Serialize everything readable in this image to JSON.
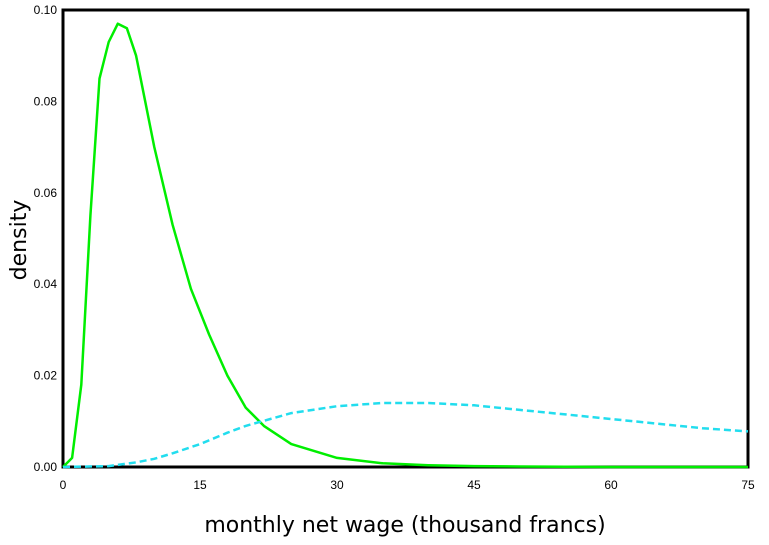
{
  "chart_data": {
    "type": "line",
    "xlabel": "monthly net wage (thousand francs)",
    "ylabel": "density",
    "xlim": [
      0,
      75
    ],
    "ylim": [
      0,
      0.1
    ],
    "xticks": [
      "0",
      "15",
      "30",
      "45",
      "60",
      "75"
    ],
    "yticks": [
      "0.00",
      "0.02",
      "0.04",
      "0.06",
      "0.08",
      "0.10"
    ],
    "grid": false,
    "series": [
      {
        "color": "#00ee00",
        "style": "solid",
        "x": [
          0,
          1,
          2,
          3,
          4,
          5,
          6,
          7,
          8,
          9,
          10,
          12,
          14,
          16,
          18,
          20,
          22,
          25,
          30,
          35,
          40,
          45,
          50,
          60,
          75
        ],
        "y": [
          0,
          0.002,
          0.018,
          0.055,
          0.085,
          0.093,
          0.097,
          0.096,
          0.09,
          0.08,
          0.07,
          0.053,
          0.039,
          0.029,
          0.02,
          0.013,
          0.009,
          0.005,
          0.002,
          0.0008,
          0.0004,
          0.0002,
          0.0001,
          0.0,
          0.0
        ]
      },
      {
        "color": "#22ddee",
        "style": "dashed",
        "x": [
          0,
          5,
          8,
          10,
          12,
          15,
          18,
          20,
          25,
          30,
          35,
          40,
          45,
          50,
          55,
          60,
          65,
          70,
          75
        ],
        "y": [
          0,
          0.0002,
          0.001,
          0.0018,
          0.003,
          0.005,
          0.0075,
          0.009,
          0.0118,
          0.0133,
          0.014,
          0.014,
          0.0135,
          0.0125,
          0.0115,
          0.0105,
          0.0095,
          0.0085,
          0.0078
        ]
      }
    ]
  }
}
